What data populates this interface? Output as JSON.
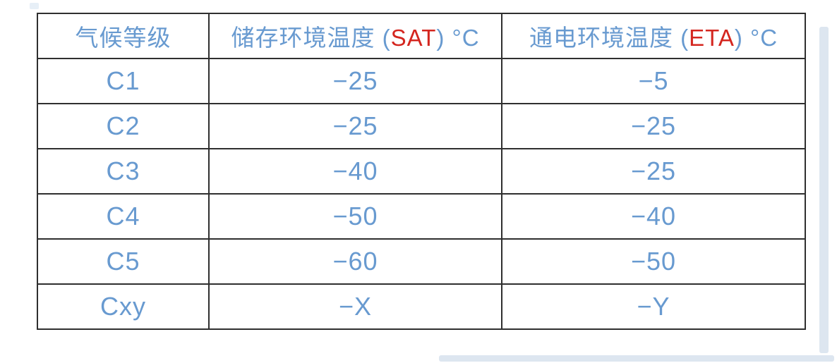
{
  "table": {
    "header": {
      "col1": "气候等级",
      "col2": {
        "prefix": "储存环境温度 (",
        "highlight": "SAT",
        "suffix": ") °C"
      },
      "col3": {
        "prefix": "通电环境温度 (",
        "highlight": "ETA",
        "suffix": ") °C"
      }
    },
    "rows": [
      {
        "grade": "C1",
        "sat": "−25",
        "eta": "−5"
      },
      {
        "grade": "C2",
        "sat": "−25",
        "eta": "−25"
      },
      {
        "grade": "C3",
        "sat": "−40",
        "eta": "−25"
      },
      {
        "grade": "C4",
        "sat": "−50",
        "eta": "−40"
      },
      {
        "grade": "C5",
        "sat": "−60",
        "eta": "−50"
      },
      {
        "grade": "Cxy",
        "sat": "−X",
        "eta": "−Y"
      }
    ]
  },
  "colors": {
    "text_blue": "#689ad0",
    "highlight_red": "#d4261f",
    "border": "#2f2f2f",
    "scrollbar_track": "#dde6f0"
  }
}
